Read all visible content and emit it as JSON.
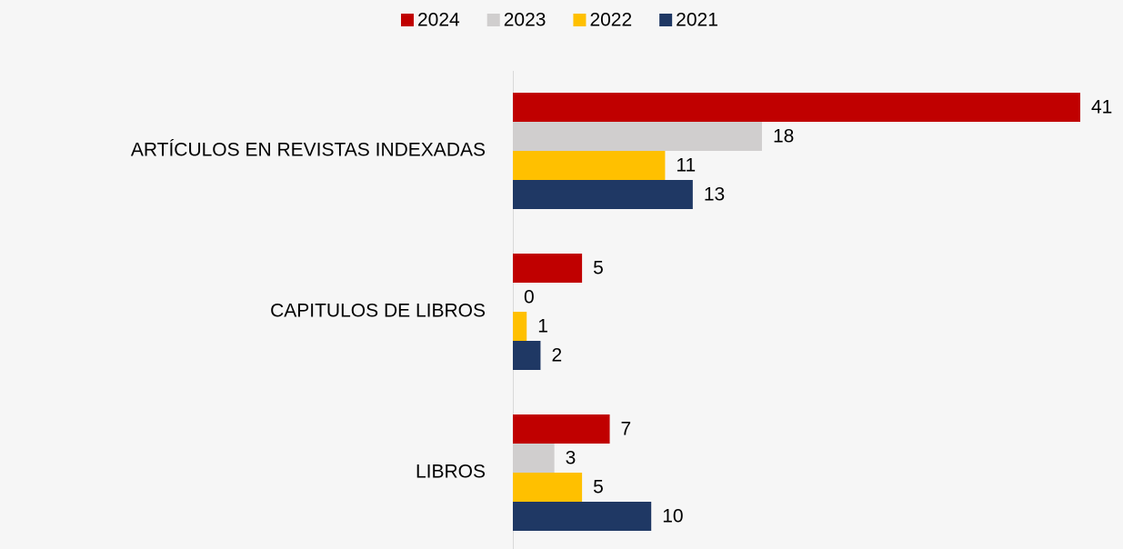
{
  "chart_data": {
    "type": "bar",
    "orientation": "horizontal",
    "categories": [
      "ARTÍCULOS EN REVISTAS INDEXADAS",
      "CAPITULOS DE LIBROS",
      "LIBROS"
    ],
    "series": [
      {
        "name": "2024",
        "color": "#c00000",
        "values": [
          41,
          5,
          7
        ]
      },
      {
        "name": "2023",
        "color": "#d0cece",
        "values": [
          18,
          0,
          3
        ]
      },
      {
        "name": "2022",
        "color": "#ffc000",
        "values": [
          11,
          1,
          5
        ]
      },
      {
        "name": "2021",
        "color": "#1f3864",
        "values": [
          13,
          2,
          10
        ]
      }
    ],
    "xlim": [
      0,
      41
    ],
    "legend": "top"
  }
}
